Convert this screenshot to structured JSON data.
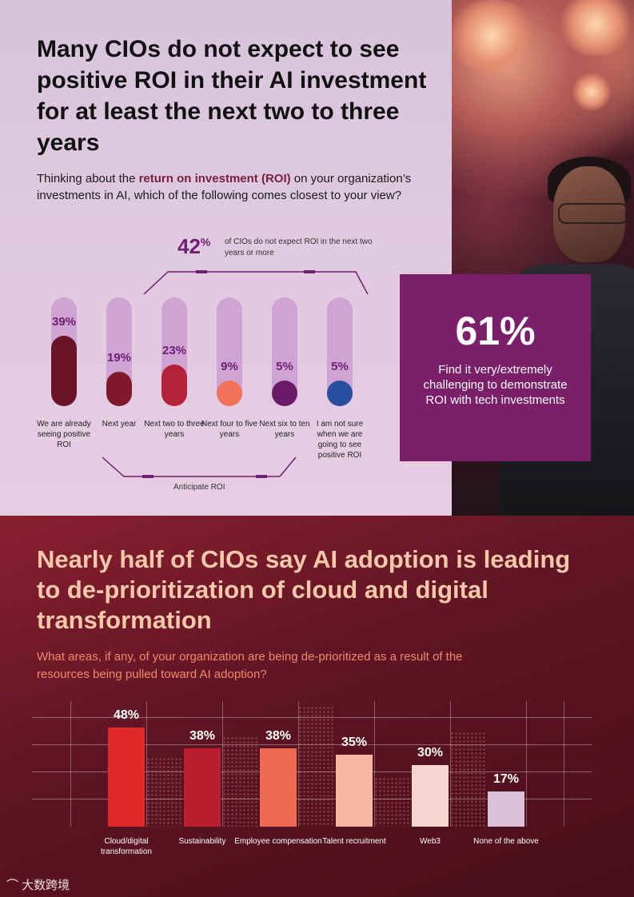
{
  "section1": {
    "title": "Many CIOs do not expect to see positive ROI in their AI investment for at least the next two to three years",
    "question_pre": "Thinking about the ",
    "question_bold": "return on investment (ROI)",
    "question_post": " on your organization’s investments in AI, which of the following comes closest to your view?",
    "highlight_value": "42",
    "highlight_unit": "%",
    "highlight_text": "of CIOs do not expect ROI in the next two years or more",
    "anticipate_label": "Anticipate ROI"
  },
  "chart_data": [
    {
      "type": "bar",
      "title": "Thinking about the return on investment (ROI) on your organization’s investments in AI, which of the following comes closest to your view?",
      "categories": [
        "We are already seeing positive ROI",
        "Next year",
        "Next two to three years",
        "Next four to five years",
        "Next six to ten years",
        "I am not sure when we are going to see positive ROI"
      ],
      "values": [
        39,
        19,
        23,
        9,
        5,
        5
      ],
      "labels": [
        "39%",
        "19%",
        "23%",
        "9%",
        "5%",
        "5%"
      ],
      "colors": [
        "#6b1428",
        "#7e1a2c",
        "#b5203a",
        "#f0735a",
        "#6e1a6a",
        "#2a4fa0"
      ],
      "ylim": [
        0,
        60
      ]
    },
    {
      "type": "bar",
      "title": "What areas, if any, of your organization are being de-prioritized as a result of the resources being pulled toward AI adoption?",
      "categories": [
        "Cloud/digital transformation",
        "Sustainability",
        "Employee compensation",
        "Talent recruitment",
        "Web3",
        "None of the above"
      ],
      "values": [
        48,
        38,
        38,
        35,
        30,
        17
      ],
      "labels": [
        "48%",
        "38%",
        "38%",
        "35%",
        "30%",
        "17%"
      ],
      "colors": [
        "#e02a2a",
        "#b8202e",
        "#ee6a55",
        "#f7b59f",
        "#f6d5cf",
        "#d9c2d9"
      ],
      "ylim": [
        0,
        60
      ]
    }
  ],
  "card": {
    "value": "61%",
    "text": "Find it very/extremely challenging to demonstrate ROI with tech investments"
  },
  "section2": {
    "title": "Nearly half of CIOs say AI adoption is leading to de-prioritization of cloud and digital transformation",
    "question": "What areas, if any, of your organization are being de-prioritized as a result of the resources being pulled toward AI adoption?"
  },
  "watermark": "大数跨境"
}
